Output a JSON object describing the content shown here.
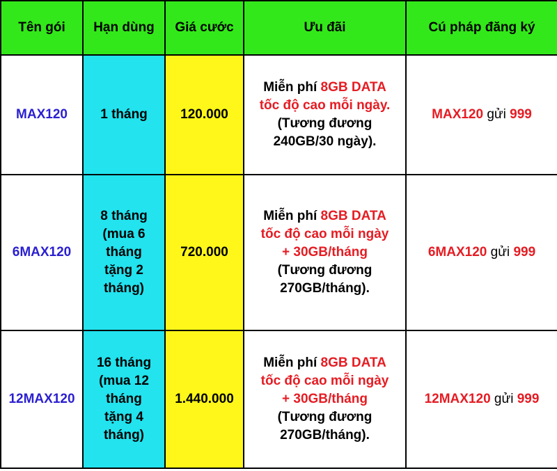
{
  "headers": {
    "name": "Tên gói",
    "duration": "Hạn dùng",
    "price": "Giá cước",
    "offer": "Ưu đãi",
    "syntax": "Cú pháp đăng ký"
  },
  "colors": {
    "header_bg": "#33e81a",
    "duration_bg": "#22e3ee",
    "price_bg": "#fff719",
    "package_name": "#2a1fd0",
    "highlight_red": "#e51c23"
  },
  "rows": [
    {
      "name": "MAX120",
      "duration": [
        "1 tháng"
      ],
      "price": "120.000",
      "offer": {
        "prefix": "Miễn phí ",
        "red_lines": [
          "8GB DATA",
          "tốc độ cao mỗi ngày."
        ],
        "equiv": "(Tương đương",
        "equiv_bold": "240GB/30 ngày",
        "equiv_end": ")."
      },
      "syntax": {
        "code": "MAX120",
        "send": " gửi ",
        "number": "999"
      }
    },
    {
      "name": "6MAX120",
      "duration": [
        "8 tháng",
        "(mua 6",
        "tháng",
        "tặng 2",
        "tháng)"
      ],
      "price": "720.000",
      "offer": {
        "prefix": "Miễn phí ",
        "red_lines": [
          "8GB DATA",
          "tốc độ cao mỗi ngày",
          "+ 30GB/tháng"
        ],
        "equiv": "(Tương đương",
        "equiv_bold": "270GB/tháng",
        "equiv_end": ")."
      },
      "syntax": {
        "code": "6MAX120",
        "send": " gửi ",
        "number": "999"
      }
    },
    {
      "name": "12MAX120",
      "duration": [
        "16 tháng",
        "(mua 12",
        "tháng",
        "tặng 4",
        "tháng)"
      ],
      "price": "1.440.000",
      "offer": {
        "prefix": "Miễn phí ",
        "red_lines": [
          "8GB DATA",
          "tốc độ cao mỗi ngày",
          "+ 30GB/tháng"
        ],
        "equiv": "(Tương đương",
        "equiv_bold": "270GB/tháng",
        "equiv_end": ")."
      },
      "syntax": {
        "code": "12MAX120",
        "send": " gửi ",
        "number": "999"
      }
    }
  ]
}
